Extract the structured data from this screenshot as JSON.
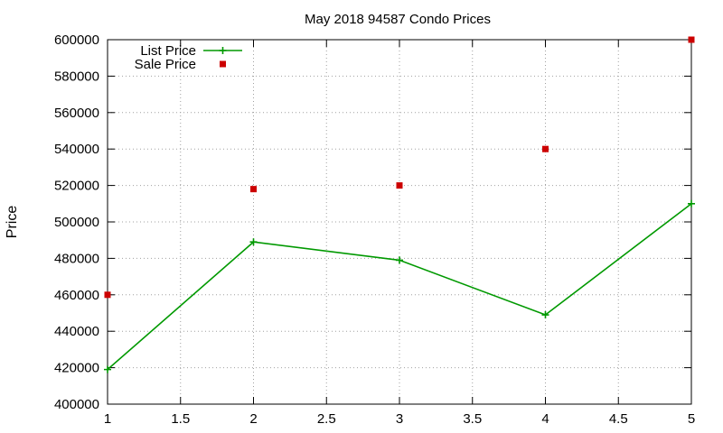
{
  "chart_data": {
    "type": "line",
    "title": "May 2018 94587 Condo Prices",
    "xlabel": "",
    "ylabel": "Price",
    "xlim": [
      1,
      5
    ],
    "ylim": [
      400000,
      600000
    ],
    "x_ticks": [
      1,
      1.5,
      2,
      2.5,
      3,
      3.5,
      4,
      4.5,
      5
    ],
    "x_tick_labels": [
      "1",
      "1.5",
      "2",
      "2.5",
      "3",
      "3.5",
      "4",
      "4.5",
      "5"
    ],
    "y_ticks": [
      400000,
      420000,
      440000,
      460000,
      480000,
      500000,
      520000,
      540000,
      560000,
      580000,
      600000
    ],
    "y_tick_labels": [
      "400000",
      "420000",
      "440000",
      "460000",
      "480000",
      "500000",
      "520000",
      "540000",
      "560000",
      "580000",
      "600000"
    ],
    "grid": true,
    "legend_position": "top-left",
    "series": [
      {
        "name": "List Price",
        "style": "linespoints",
        "marker": "plus",
        "color": "#009900",
        "x": [
          1,
          2,
          3,
          4,
          5
        ],
        "y": [
          419000,
          489000,
          479000,
          449000,
          510000
        ]
      },
      {
        "name": "Sale Price",
        "style": "points",
        "marker": "square",
        "color": "#cc0000",
        "x": [
          1,
          2,
          3,
          4,
          5
        ],
        "y": [
          460000,
          518000,
          520000,
          540000,
          600000
        ]
      }
    ]
  }
}
